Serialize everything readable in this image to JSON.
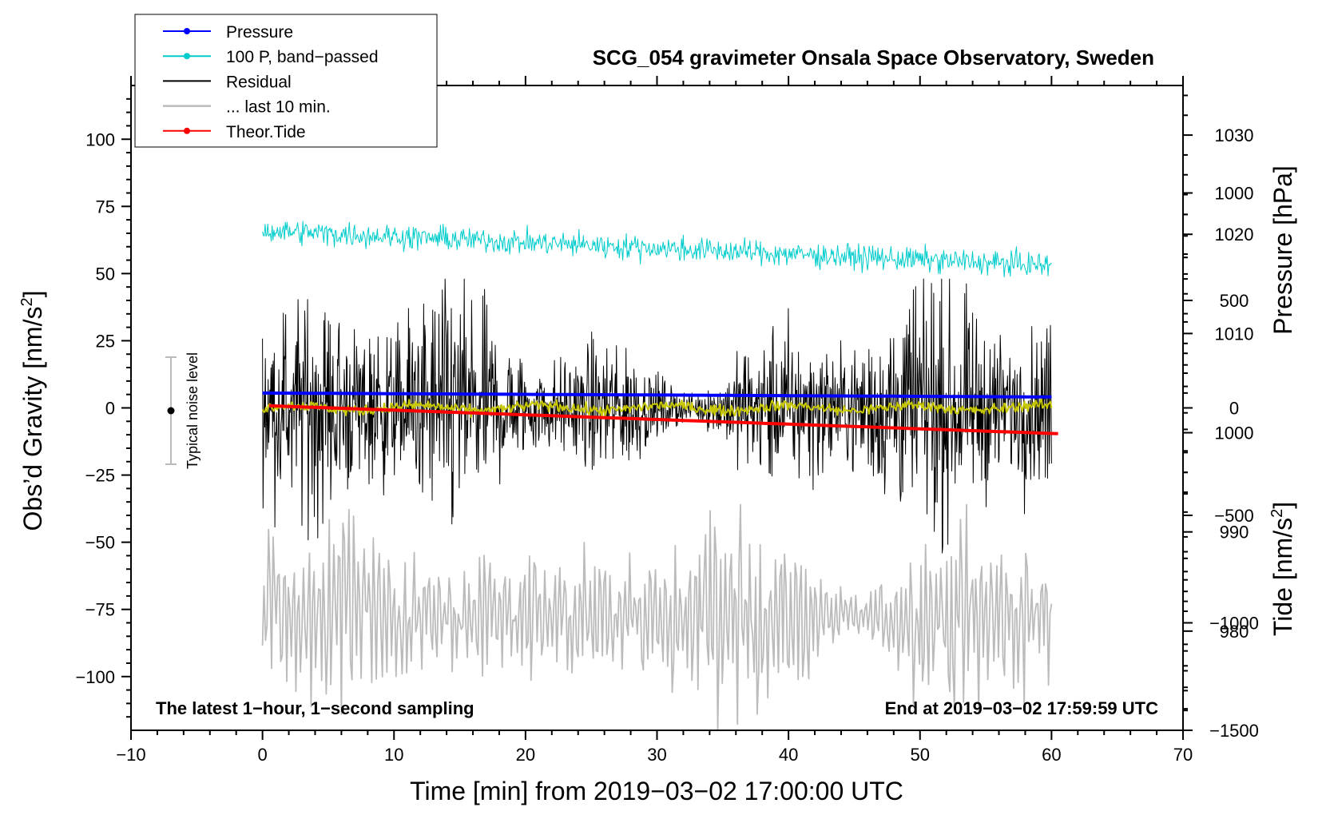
{
  "chart_data": {
    "type": "line",
    "title": "SCG_054 gravimeter Onsala Space Observatory, Sweden",
    "xlabel": "Time [min] from 2019−03−02 17:00:00 UTC",
    "ylabel": "Obs’d Gravity [nm/s²]",
    "ylabel_main": "Obs’d Gravity [nm/s",
    "ylabel_sup": "2",
    "ylabel_end": "]",
    "y2label": "Pressure [hPa]",
    "y3label": "Tide [nm/s²]",
    "y3label_main": "Tide [nm/s",
    "y3label_sup": "2",
    "y3label_end": "]",
    "xlim": [
      -10,
      70
    ],
    "ylim": [
      -120,
      120
    ],
    "pressure_lim": [
      970,
      1035
    ],
    "tide_lim": [
      -1500,
      1500
    ],
    "x_ticks": [
      -10,
      0,
      10,
      20,
      30,
      40,
      50,
      60,
      70
    ],
    "x_tick_labels": [
      "−10",
      "0",
      "10",
      "20",
      "30",
      "40",
      "50",
      "60",
      "70"
    ],
    "y_ticks": [
      -100,
      -75,
      -50,
      -25,
      0,
      25,
      50,
      75,
      100
    ],
    "y_tick_labels": [
      "−100",
      "−75",
      "−50",
      "−25",
      "0",
      "25",
      "50",
      "75",
      "100"
    ],
    "pressure_ticks": [
      980,
      990,
      1000,
      1010,
      1020,
      1030
    ],
    "pressure_tick_labels": [
      "980",
      "990",
      "1000",
      "1010",
      "1020",
      "1030"
    ],
    "tide_ticks": [
      -1500,
      -1000,
      -500,
      0,
      500,
      1000
    ],
    "tide_tick_labels": [
      "−1500",
      "−1000",
      "−500",
      "0",
      "500",
      "1000"
    ],
    "legend": [
      {
        "label": "Pressure",
        "color": "#0000ff",
        "marker": true
      },
      {
        "label": "100 P, band−passed",
        "color": "#00cccc",
        "marker": true
      },
      {
        "label": "Residual",
        "color": "#000000",
        "marker": false
      },
      {
        "label": "... last 10 min.",
        "color": "#bbbbbb",
        "marker": false
      },
      {
        "label": "Theor.Tide",
        "color": "#ff0000",
        "marker": true
      }
    ],
    "legend_position": "top-left",
    "annotations": {
      "bottom_left": "The latest 1−hour, 1−second sampling",
      "bottom_right": "End at 2019−03−02 17:59:59 UTC",
      "noise_label": "Typical noise level"
    },
    "noise_bar": {
      "x": -7,
      "center": 0,
      "low": -20,
      "high": 20
    },
    "series": [
      {
        "name": "Pressure",
        "axis": "pressure",
        "color": "#0000ff",
        "x_range": [
          0,
          60
        ],
        "start": 1004.0,
        "end": 1003.6,
        "noise": 0.05
      },
      {
        "name": "100 P, band−passed",
        "axis": "gravity",
        "color": "#00cccc",
        "x_range": [
          0,
          60
        ],
        "start": 66,
        "end": 53,
        "noise": 3
      },
      {
        "name": "Residual",
        "axis": "gravity",
        "color": "#000000",
        "x_range": [
          0,
          60
        ],
        "start": 0,
        "end": 0,
        "noise": 18,
        "min": -54,
        "max": 48
      },
      {
        "name": "Residual (smoothed)",
        "axis": "gravity",
        "color": "#c8c800",
        "x_range": [
          0,
          60
        ],
        "start": 1,
        "end": 1,
        "noise": 1.5
      },
      {
        "name": "... last 10 min.",
        "axis": "gravity",
        "color": "#bbbbbb",
        "x_range": [
          0,
          60
        ],
        "start": -78,
        "end": -78,
        "noise": 14,
        "min": -120,
        "max": -36
      },
      {
        "name": "Theor.Tide",
        "axis": "tide",
        "color": "#ff0000",
        "x_range": [
          0.5,
          60.5
        ],
        "start": 10,
        "end": -120,
        "noise": 0
      }
    ]
  }
}
